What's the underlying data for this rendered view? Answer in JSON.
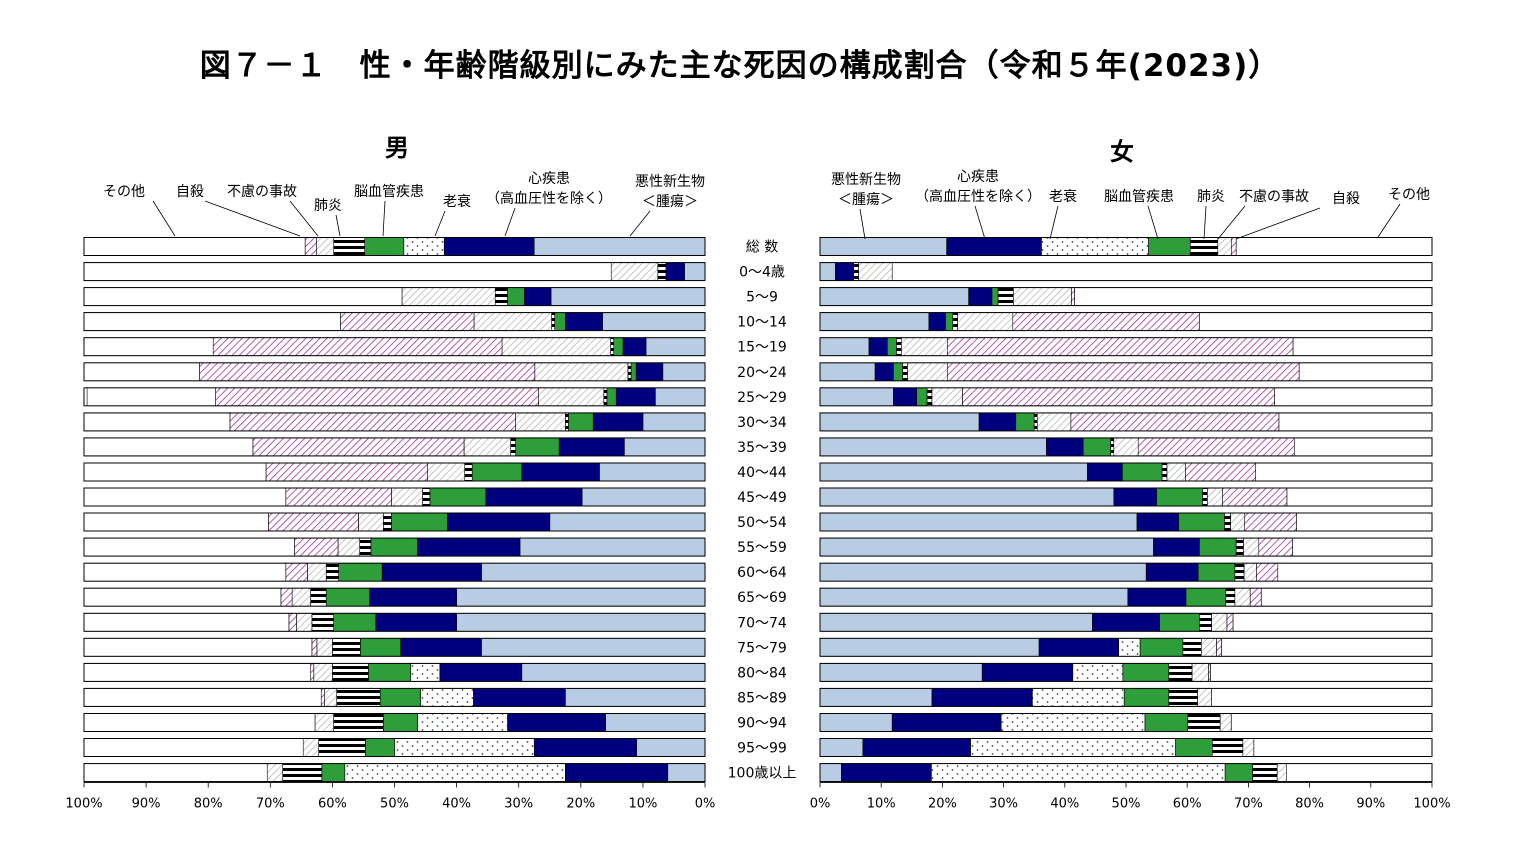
{
  "title": "図７－１　性・年齢階級別にみた主な死因の構成割合（令和５年(2023)）",
  "categories": [
    "総 数",
    "0～4歳",
    "5～9",
    "10～14",
    "15～19",
    "20～24",
    "25～29",
    "30～34",
    "35～39",
    "40～44",
    "45～49",
    "50～54",
    "55～59",
    "60～64",
    "65～69",
    "70～74",
    "75～79",
    "80～84",
    "85～89",
    "90～94",
    "95～99",
    "100歳以上"
  ],
  "causes": [
    {
      "name": "悪性新生物\n＜腫瘍＞",
      "color": "#b8cce4",
      "pattern": "solid"
    },
    {
      "name": "心疾患\n（高血圧性を除く）",
      "color": "#00007f",
      "pattern": "solid"
    },
    {
      "name": "老衰",
      "color": "#ffffff",
      "pattern": "dots"
    },
    {
      "name": "脳血管疾患",
      "color": "#2e9e3a",
      "pattern": "solid"
    },
    {
      "name": "肺炎",
      "color": "#000000",
      "pattern": "hstripes"
    },
    {
      "name": "不慮の事故",
      "color": "#ffffff",
      "pattern": "diag-gray"
    },
    {
      "name": "自殺",
      "color": "#ffffff",
      "pattern": "diag-purple"
    },
    {
      "name": "その他",
      "color": "#ffffff",
      "pattern": "none"
    }
  ],
  "chart_data": [
    {
      "type": "bar",
      "stacked": true,
      "orientation": "horizontal",
      "direction": "right-to-left",
      "title": "男",
      "categories": [
        "総 数",
        "0～4歳",
        "5～9",
        "10～14",
        "15～19",
        "20～24",
        "25～29",
        "30～34",
        "35～39",
        "40～44",
        "45～49",
        "50～54",
        "55～59",
        "60～64",
        "65～69",
        "70～74",
        "75～79",
        "80～84",
        "85～89",
        "90～94",
        "95～99",
        "100歳以上"
      ],
      "xlim": [
        0,
        100
      ],
      "x_ticks": [
        "100%",
        "90%",
        "80%",
        "70%",
        "60%",
        "50%",
        "40%",
        "30%",
        "20%",
        "10%",
        "0%"
      ],
      "series": [
        {
          "name": "悪性新生物\n＜腫瘍＞",
          "values": [
            27.5,
            3.3,
            24.8,
            16.5,
            9.5,
            6.8,
            8.0,
            10.0,
            13.0,
            17.0,
            19.8,
            25.0,
            29.8,
            36.0,
            40.0,
            40.0,
            36.0,
            29.5,
            22.5,
            16.0,
            11.0,
            6.0
          ]
        },
        {
          "name": "心疾患\n（高血圧性を除く）",
          "values": [
            14.5,
            3.0,
            4.3,
            6.0,
            3.7,
            4.3,
            6.3,
            8.0,
            10.5,
            12.5,
            15.5,
            16.5,
            16.5,
            16.0,
            14.0,
            13.0,
            13.0,
            13.2,
            14.8,
            15.8,
            16.5,
            16.5
          ]
        },
        {
          "name": "老衰",
          "values": [
            6.5,
            0,
            0,
            0,
            0,
            0,
            0,
            0,
            0,
            0,
            0,
            0,
            0,
            0,
            0,
            0,
            0,
            4.7,
            8.5,
            14.5,
            22.5,
            35.5
          ]
        },
        {
          "name": "脳血管疾患",
          "values": [
            6.3,
            0,
            2.7,
            1.7,
            1.5,
            0.8,
            1.5,
            4.0,
            7.0,
            8.0,
            9.0,
            9.0,
            7.5,
            7.0,
            7.0,
            6.8,
            6.5,
            6.8,
            6.5,
            5.5,
            4.7,
            3.7
          ]
        },
        {
          "name": "肺炎",
          "values": [
            5.0,
            1.3,
            2.0,
            0.5,
            0.5,
            0.5,
            0.5,
            0.5,
            0.8,
            1.2,
            1.2,
            1.3,
            1.8,
            2.0,
            2.5,
            3.5,
            4.5,
            5.8,
            7.0,
            8.0,
            7.5,
            6.3
          ]
        },
        {
          "name": "不慮の事故",
          "values": [
            2.8,
            7.5,
            15.0,
            12.5,
            17.5,
            15.0,
            10.5,
            8.0,
            7.5,
            6.0,
            5.0,
            4.0,
            3.5,
            3.0,
            3.0,
            2.5,
            2.5,
            3.0,
            2.0,
            3.0,
            2.5,
            2.5
          ]
        },
        {
          "name": "自殺",
          "values": [
            1.8,
            0,
            0,
            21.5,
            46.5,
            54.0,
            52.0,
            46.0,
            34.0,
            26.0,
            17.0,
            14.5,
            7.0,
            3.5,
            1.8,
            1.2,
            0.8,
            0.5,
            0.5,
            0,
            0,
            0
          ]
        },
        {
          "name": "その他",
          "values": [
            35.6,
            84.9,
            51.2,
            41.3,
            20.8,
            18.6,
            20.7,
            23.5,
            27.2,
            29.3,
            32.5,
            29.7,
            33.9,
            32.5,
            31.7,
            33.0,
            36.7,
            36.5,
            38.2,
            37.2,
            35.3,
            29.5
          ]
        }
      ]
    },
    {
      "type": "bar",
      "stacked": true,
      "orientation": "horizontal",
      "direction": "left-to-right",
      "title": "女",
      "categories": [
        "総 数",
        "0～4歳",
        "5～9",
        "10～14",
        "15～19",
        "20～24",
        "25～29",
        "30～34",
        "35～39",
        "40～44",
        "45～49",
        "50～54",
        "55～59",
        "60～64",
        "65～69",
        "70～74",
        "75～79",
        "80～84",
        "85～89",
        "90～94",
        "95～99",
        "100歳以上"
      ],
      "xlim": [
        0,
        100
      ],
      "x_ticks": [
        "0%",
        "10%",
        "20%",
        "30%",
        "40%",
        "50%",
        "60%",
        "70%",
        "80%",
        "90%",
        "100%"
      ],
      "series": [
        {
          "name": "悪性新生物\n＜腫瘍＞",
          "values": [
            20.7,
            2.5,
            24.3,
            17.8,
            8.0,
            9.0,
            12.0,
            26.0,
            37.0,
            43.7,
            48.0,
            51.8,
            54.5,
            53.3,
            50.3,
            44.5,
            35.8,
            26.5,
            18.3,
            11.8,
            7.0,
            3.5
          ]
        },
        {
          "name": "心疾患\n（高血圧性を除く）",
          "values": [
            15.5,
            3.0,
            3.8,
            2.7,
            3.0,
            3.0,
            3.8,
            6.0,
            6.0,
            5.7,
            7.0,
            6.8,
            7.5,
            8.5,
            9.5,
            11.0,
            13.0,
            14.8,
            16.4,
            17.8,
            17.6,
            14.7
          ]
        },
        {
          "name": "老衰",
          "values": [
            17.5,
            0,
            0,
            0,
            0,
            0,
            0,
            0,
            0,
            0,
            0,
            0,
            0,
            0,
            0,
            0,
            3.5,
            8.2,
            15.0,
            23.5,
            33.5,
            48.0
          ]
        },
        {
          "name": "脳血管疾患",
          "values": [
            6.8,
            0,
            1.0,
            1.2,
            1.5,
            1.5,
            1.7,
            3.0,
            4.5,
            6.5,
            7.5,
            7.5,
            6.0,
            6.0,
            6.5,
            6.5,
            7.0,
            7.5,
            7.3,
            7.0,
            6.0,
            4.5
          ]
        },
        {
          "name": "肺炎",
          "values": [
            4.5,
            0.8,
            2.5,
            0.8,
            0.8,
            0.8,
            0.8,
            0.5,
            0.5,
            0.8,
            0.8,
            1.0,
            1.2,
            1.5,
            1.5,
            2.0,
            3.0,
            3.8,
            4.7,
            5.3,
            5.0,
            4.0
          ]
        },
        {
          "name": "不慮の事故",
          "values": [
            2.2,
            5.5,
            9.5,
            9.0,
            7.5,
            6.5,
            5.0,
            5.5,
            4.0,
            3.0,
            2.5,
            2.3,
            2.5,
            2.0,
            2.5,
            2.5,
            2.5,
            2.7,
            2.3,
            1.8,
            1.8,
            1.5
          ]
        },
        {
          "name": "自殺",
          "values": [
            0.8,
            0,
            0.5,
            30.5,
            56.5,
            57.5,
            51.0,
            34.0,
            25.5,
            11.5,
            10.5,
            8.5,
            5.5,
            3.5,
            1.8,
            1.0,
            0.8,
            0.3,
            0,
            0,
            0,
            0
          ]
        },
        {
          "name": "その他",
          "values": [
            32.0,
            88.2,
            58.4,
            38.0,
            22.7,
            21.7,
            25.7,
            25.0,
            22.5,
            28.8,
            23.7,
            22.1,
            22.8,
            25.2,
            27.9,
            32.5,
            34.4,
            36.2,
            36.0,
            32.8,
            29.1,
            23.8
          ]
        }
      ]
    }
  ]
}
